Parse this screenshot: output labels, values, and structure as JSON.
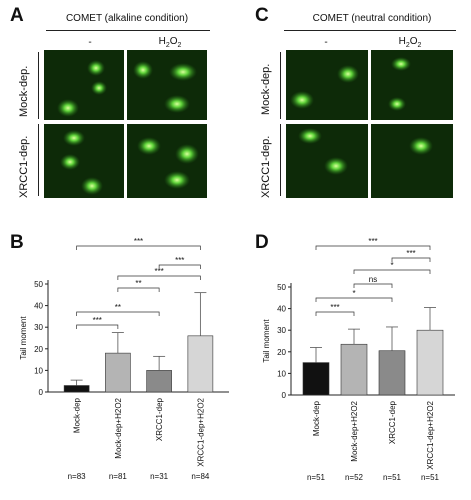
{
  "panels": {
    "A": {
      "letter": "A",
      "title": "COMET (alkaline condition)",
      "columns": [
        "-",
        "H2O2"
      ],
      "rows": [
        "Mock-dep.",
        "XRCC1-dep."
      ]
    },
    "C": {
      "letter": "C",
      "title": "COMET (neutral condition)",
      "columns": [
        "-",
        "H2O2"
      ],
      "rows": [
        "Mock-dep.",
        "XRCC1-dep."
      ]
    },
    "B": {
      "letter": "B"
    },
    "D": {
      "letter": "D"
    }
  },
  "chart_data": [
    {
      "id": "B",
      "type": "bar",
      "ylabel": "Tail moment",
      "ylim": [
        0,
        50
      ],
      "yticks": [
        0,
        10,
        20,
        30,
        40,
        50
      ],
      "categories": [
        "Mock-dep",
        "Mock-dep+H2O2",
        "XRCC1-dep",
        "XRCC1-dep+H2O2"
      ],
      "values": [
        3,
        18,
        10,
        26
      ],
      "errors": [
        2.5,
        9.5,
        6.5,
        20
      ],
      "colors": [
        "#111111",
        "#b4b4b4",
        "#8a8a8a",
        "#d6d6d6"
      ],
      "n_labels": [
        "n=83",
        "n=81",
        "n=31",
        "n=84"
      ],
      "significance": [
        {
          "from": 0,
          "to": 1,
          "label": "***"
        },
        {
          "from": 0,
          "to": 2,
          "label": "**"
        },
        {
          "from": 1,
          "to": 2,
          "label": "**"
        },
        {
          "from": 1,
          "to": 3,
          "label": "***"
        },
        {
          "from": 2,
          "to": 3,
          "label": "***"
        },
        {
          "from": 0,
          "to": 3,
          "label": "***"
        }
      ]
    },
    {
      "id": "D",
      "type": "bar",
      "ylabel": "Tail moment",
      "ylim": [
        0,
        50
      ],
      "yticks": [
        0,
        10,
        20,
        30,
        40,
        50
      ],
      "categories": [
        "Mock-dep",
        "Mock-dep+H2O2",
        "XRCC1-dep",
        "XRCC1-dep+H2O2"
      ],
      "values": [
        15,
        23.5,
        20.5,
        30
      ],
      "errors": [
        7,
        7,
        11,
        10.5
      ],
      "colors": [
        "#111111",
        "#b4b4b4",
        "#8a8a8a",
        "#d6d6d6"
      ],
      "n_labels": [
        "n=51",
        "n=52",
        "n=51",
        "n=51"
      ],
      "significance": [
        {
          "from": 0,
          "to": 1,
          "label": "***"
        },
        {
          "from": 0,
          "to": 2,
          "label": "*"
        },
        {
          "from": 1,
          "to": 2,
          "label": "ns"
        },
        {
          "from": 1,
          "to": 3,
          "label": "*"
        },
        {
          "from": 2,
          "to": 3,
          "label": "***"
        },
        {
          "from": 0,
          "to": 3,
          "label": "***"
        }
      ]
    }
  ]
}
